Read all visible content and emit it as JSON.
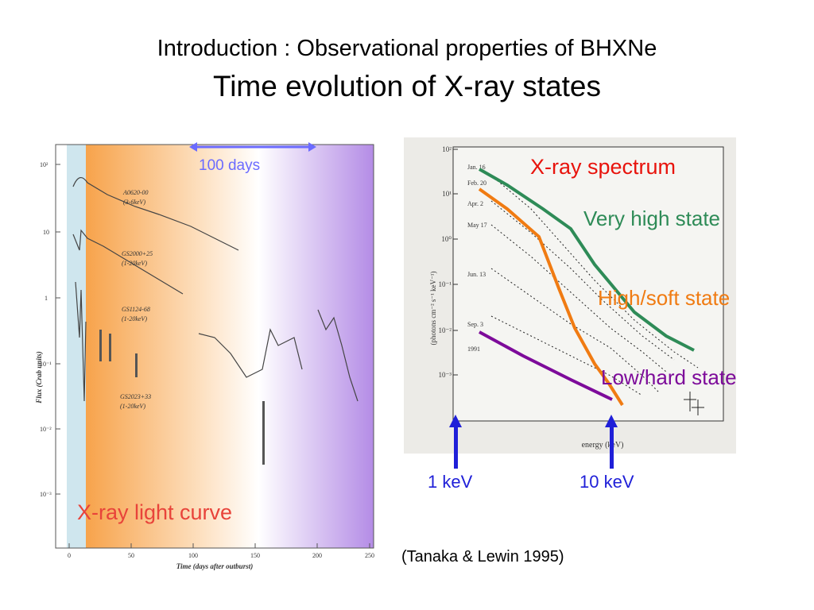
{
  "slide": {
    "title": "Introduction : Observational properties of BHXNe",
    "subtitle": "Time evolution of X-ray states",
    "citation": "(Tanaka & Lewin 1995)"
  },
  "light_curve": {
    "caption": "X-ray light curve",
    "duration_marker": "100 days",
    "ylabel": "Flux (Crab units)",
    "xlabel": "Time (days after outburst)",
    "x_ticks": [
      "0",
      "50",
      "100",
      "150",
      "200",
      "250"
    ],
    "y_ticks": [
      "10²",
      "10",
      "1",
      "10⁻¹",
      "10⁻²",
      "10⁻³"
    ],
    "sources": [
      {
        "name": "A0620-00",
        "band": "(3-6keV)"
      },
      {
        "name": "GS2000+25",
        "band": "(1-20keV)"
      },
      {
        "name": "GS1124-68",
        "band": "(1-20keV)"
      },
      {
        "name": "GS2023+33",
        "band": "(1-20keV)"
      }
    ],
    "colors": {
      "very_high": "#add8e6",
      "soft": "#f7a34b",
      "hard": "#b48ce6",
      "caption": "#e8433a",
      "marker": "#6b6bff"
    }
  },
  "spectrum": {
    "caption": "X-ray spectrum",
    "ylabel": "(photons cm⁻² s⁻¹ keV⁻¹)",
    "xlabel": "energy (keV)",
    "y_ticks": [
      "10²",
      "10¹",
      "10⁰",
      "10⁻¹",
      "10⁻²",
      "10⁻³"
    ],
    "dates": [
      "Jan. 16",
      "Feb. 20",
      "Apr. 2",
      "May 17",
      "Jun. 13",
      "Sep. 3",
      "1991"
    ],
    "states": [
      {
        "name": "Very high state",
        "color": "#2e8b57"
      },
      {
        "name": "High/soft state",
        "color": "#f07b12"
      },
      {
        "name": "Low/hard state",
        "color": "#7d0b9a"
      }
    ],
    "energy_markers": [
      "1 keV",
      "10 keV"
    ],
    "caption_color": "#e8130c",
    "marker_color": "#1f1fd8"
  }
}
